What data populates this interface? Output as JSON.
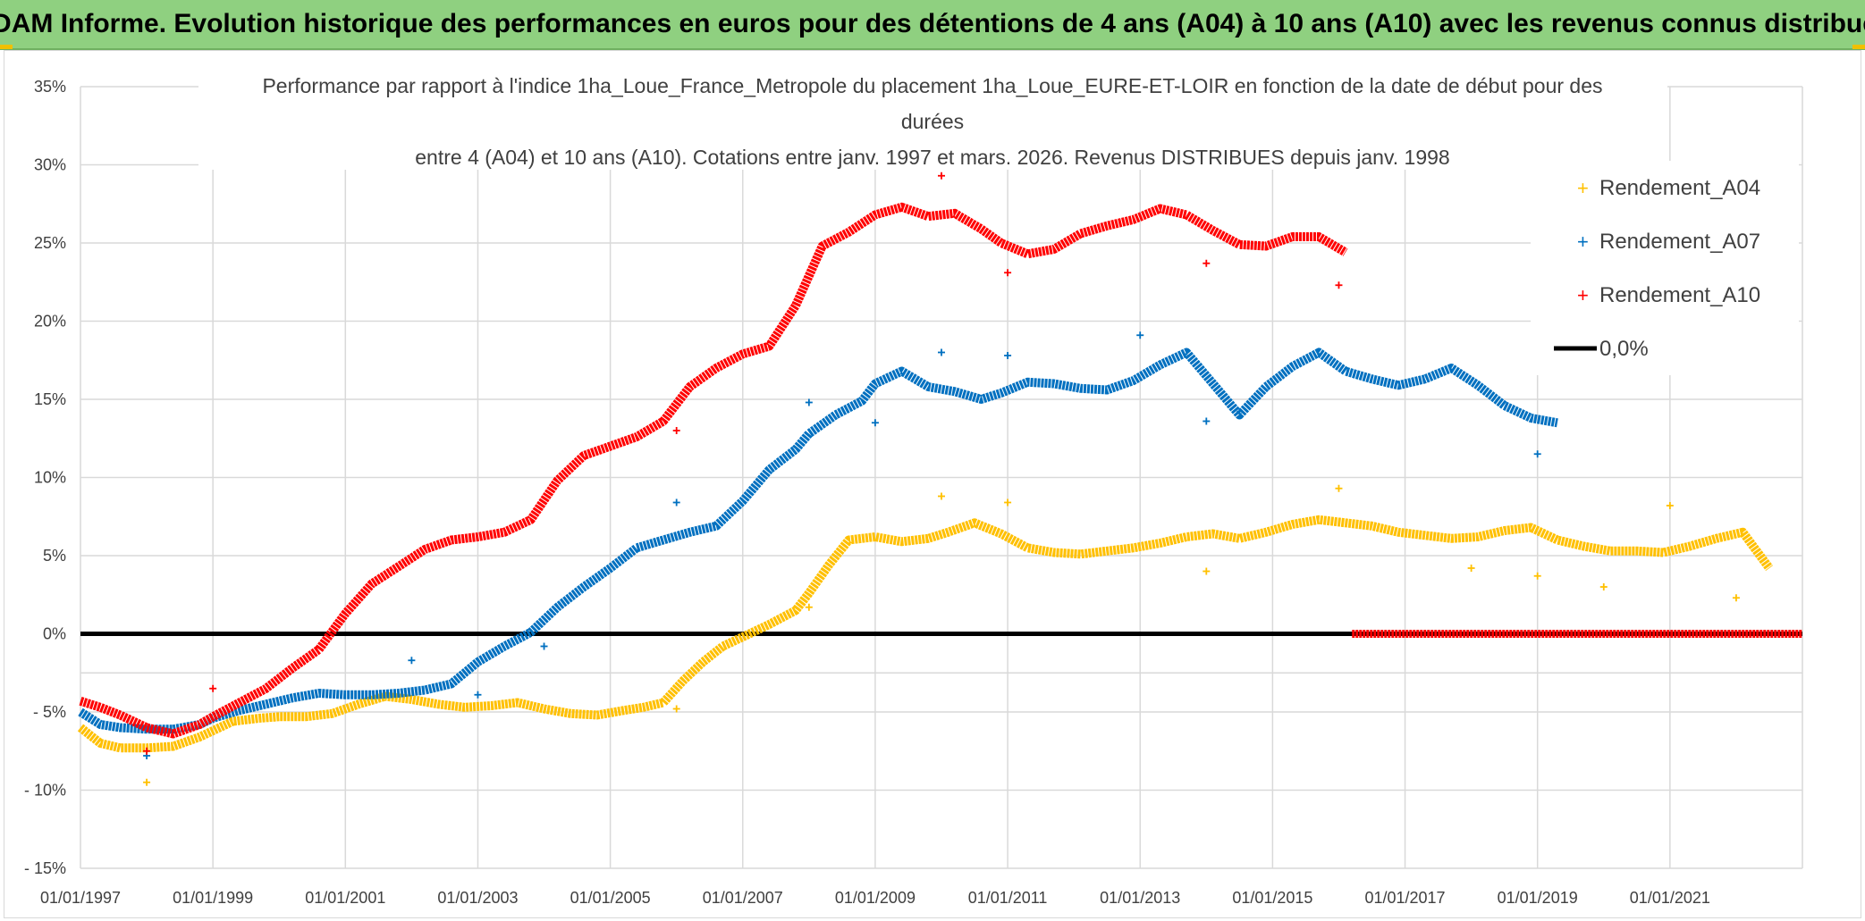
{
  "header": {
    "banner": "ADAM Informe. Evolution historique des performances en euros pour des détentions de 4 ans (A04) à 10 ans (A10) avec les revenus connus distribués"
  },
  "colors": {
    "banner_bg": "#8fd080",
    "A04": "#ffc000",
    "A07": "#0070c0",
    "A10": "#ff0000",
    "zero": "#000000",
    "grid": "#d9d9d9"
  },
  "chart_data": {
    "type": "scatter",
    "title_lines": [
      "Performance par rapport à l'indice 1ha_Loue_France_Metropole  du placement 1ha_Loue_EURE-ET-LOIR en fonction de la date de début pour des",
      "durées",
      "entre 4 (A04) et 10 ans (A10). Cotations entre janv. 1997 et mars. 2026. Revenus DISTRIBUES depuis janv. 1998"
    ],
    "xlabel": "",
    "ylabel": "",
    "xlim": [
      1997.0,
      2023.0
    ],
    "ylim": [
      -15,
      35
    ],
    "x_ticks": [
      1997,
      1999,
      2001,
      2003,
      2005,
      2007,
      2009,
      2011,
      2013,
      2015,
      2017,
      2019,
      2021
    ],
    "x_tick_labels": [
      "01/01/1997",
      "01/01/1999",
      "01/01/2001",
      "01/01/2003",
      "01/01/2005",
      "01/01/2007",
      "01/01/2009",
      "01/01/2011",
      "01/01/2013",
      "01/01/2015",
      "01/01/2017",
      "01/01/2019",
      "01/01/2021"
    ],
    "y_ticks": [
      -15,
      -10,
      -5,
      0,
      5,
      10,
      15,
      20,
      25,
      30,
      35
    ],
    "y_tick_labels": [
      "- 15%",
      "- 10%",
      "- 5%",
      "0%",
      "5%",
      "10%",
      "15%",
      "20%",
      "25%",
      "30%",
      "35%"
    ],
    "grid": true,
    "legend_position": "top-right",
    "series": [
      {
        "name": "Rendement_A04",
        "color": "#ffc000",
        "x": [
          1997.0,
          1997.3,
          1997.6,
          1998.0,
          1998.4,
          1998.8,
          1999.0,
          1999.3,
          1999.7,
          2000.0,
          2000.4,
          2000.8,
          2001.2,
          2001.6,
          2002.0,
          2002.4,
          2002.8,
          2003.2,
          2003.6,
          2004.0,
          2004.4,
          2004.8,
          2005.2,
          2005.5,
          2005.8,
          2006.1,
          2006.4,
          2006.7,
          2007.0,
          2007.4,
          2007.8,
          2008.0,
          2008.3,
          2008.6,
          2009.0,
          2009.4,
          2009.8,
          2010.1,
          2010.5,
          2010.9,
          2011.3,
          2011.7,
          2012.1,
          2012.5,
          2012.9,
          2013.3,
          2013.7,
          2014.1,
          2014.5,
          2014.9,
          2015.3,
          2015.7,
          2016.1,
          2016.5,
          2016.9,
          2017.3,
          2017.7,
          2018.1,
          2018.5,
          2018.9,
          2019.3,
          2019.7,
          2020.1,
          2020.5,
          2020.9,
          2021.3,
          2021.7,
          2022.1,
          2022.5
        ],
        "values": [
          -6.0,
          -7.0,
          -7.3,
          -7.3,
          -7.2,
          -6.6,
          -6.2,
          -5.6,
          -5.4,
          -5.3,
          -5.3,
          -5.1,
          -4.5,
          -4.0,
          -4.2,
          -4.5,
          -4.7,
          -4.6,
          -4.4,
          -4.8,
          -5.1,
          -5.2,
          -4.9,
          -4.7,
          -4.4,
          -3.0,
          -1.8,
          -0.8,
          -0.2,
          0.6,
          1.5,
          2.6,
          4.4,
          6.0,
          6.2,
          5.9,
          6.1,
          6.5,
          7.1,
          6.4,
          5.5,
          5.2,
          5.1,
          5.3,
          5.5,
          5.8,
          6.2,
          6.4,
          6.1,
          6.5,
          7.0,
          7.3,
          7.1,
          6.9,
          6.5,
          6.3,
          6.1,
          6.2,
          6.6,
          6.8,
          6.0,
          5.6,
          5.3,
          5.3,
          5.2,
          5.6,
          6.1,
          6.5,
          4.2
        ]
      },
      {
        "name": "Rendement_A07",
        "color": "#0070c0",
        "x": [
          1997.0,
          1997.3,
          1997.6,
          1998.0,
          1998.4,
          1998.8,
          1999.0,
          1999.4,
          1999.8,
          2000.2,
          2000.6,
          2001.0,
          2001.4,
          2001.8,
          2002.2,
          2002.6,
          2003.0,
          2003.4,
          2003.8,
          2004.2,
          2004.6,
          2005.0,
          2005.4,
          2005.8,
          2006.2,
          2006.6,
          2007.0,
          2007.4,
          2007.8,
          2008.0,
          2008.4,
          2008.8,
          2009.0,
          2009.4,
          2009.8,
          2010.2,
          2010.6,
          2010.9,
          2011.3,
          2011.7,
          2012.1,
          2012.5,
          2012.9,
          2013.3,
          2013.7,
          2014.1,
          2014.5,
          2014.9,
          2015.3,
          2015.7,
          2016.1,
          2016.5,
          2016.9,
          2017.3,
          2017.7,
          2018.1,
          2018.5,
          2018.9,
          2019.3
        ],
        "values": [
          -5.0,
          -5.8,
          -6.0,
          -6.1,
          -6.1,
          -5.8,
          -5.4,
          -4.9,
          -4.5,
          -4.1,
          -3.8,
          -3.9,
          -3.9,
          -3.8,
          -3.6,
          -3.2,
          -1.8,
          -0.8,
          0.1,
          1.7,
          3.0,
          4.2,
          5.5,
          6.0,
          6.5,
          6.9,
          8.5,
          10.5,
          11.8,
          12.8,
          14.0,
          14.9,
          16.0,
          16.8,
          15.8,
          15.5,
          15.0,
          15.4,
          16.1,
          16.0,
          15.7,
          15.6,
          16.2,
          17.2,
          18.0,
          16.0,
          14.0,
          15.8,
          17.1,
          18.0,
          16.8,
          16.3,
          15.9,
          16.3,
          17.0,
          15.9,
          14.6,
          13.8,
          13.5
        ]
      },
      {
        "name": "Rendement_A10",
        "color": "#ff0000",
        "x": [
          1997.0,
          1997.3,
          1997.6,
          1998.0,
          1998.4,
          1998.8,
          1999.0,
          1999.4,
          1999.8,
          2000.2,
          2000.6,
          2001.0,
          2001.4,
          2001.8,
          2002.2,
          2002.6,
          2003.0,
          2003.4,
          2003.8,
          2004.2,
          2004.6,
          2005.0,
          2005.4,
          2005.8,
          2006.2,
          2006.6,
          2007.0,
          2007.4,
          2007.8,
          2008.2,
          2008.6,
          2009.0,
          2009.4,
          2009.8,
          2010.2,
          2010.6,
          2010.9,
          2011.3,
          2011.7,
          2012.1,
          2012.5,
          2012.9,
          2013.3,
          2013.7,
          2014.1,
          2014.5,
          2014.9,
          2015.3,
          2015.7,
          2016.1
        ],
        "values": [
          -4.3,
          -4.7,
          -5.2,
          -6.0,
          -6.4,
          -5.8,
          -5.3,
          -4.4,
          -3.5,
          -2.2,
          -1.0,
          1.3,
          3.2,
          4.3,
          5.4,
          6.0,
          6.2,
          6.5,
          7.3,
          9.8,
          11.4,
          12.0,
          12.6,
          13.6,
          15.8,
          17.0,
          17.9,
          18.4,
          21.0,
          24.8,
          25.7,
          26.8,
          27.3,
          26.7,
          26.9,
          25.9,
          25.0,
          24.3,
          24.6,
          25.6,
          26.1,
          26.5,
          27.2,
          26.8,
          25.8,
          24.9,
          24.8,
          25.4,
          25.4,
          24.4
        ]
      },
      {
        "name": "0,0%",
        "color": "#000000",
        "x": [
          1997.0,
          2023.0
        ],
        "values": [
          0,
          0
        ]
      }
    ],
    "zero_tail": {
      "name": "Rendement_A10",
      "color": "#ff0000",
      "x": [
        2016.2,
        2023.0
      ],
      "values": [
        0,
        0
      ]
    },
    "outliers": [
      {
        "series": "Rendement_A04",
        "x": 1998.0,
        "y": -9.5
      },
      {
        "series": "Rendement_A04",
        "x": 2006.0,
        "y": -4.8
      },
      {
        "series": "Rendement_A04",
        "x": 2008.0,
        "y": 1.7
      },
      {
        "series": "Rendement_A04",
        "x": 2010.0,
        "y": 8.8
      },
      {
        "series": "Rendement_A04",
        "x": 2011.0,
        "y": 8.4
      },
      {
        "series": "Rendement_A04",
        "x": 2014.0,
        "y": 4.0
      },
      {
        "series": "Rendement_A04",
        "x": 2016.0,
        "y": 9.3
      },
      {
        "series": "Rendement_A04",
        "x": 2018.0,
        "y": 4.2
      },
      {
        "series": "Rendement_A04",
        "x": 2019.0,
        "y": 3.7
      },
      {
        "series": "Rendement_A04",
        "x": 2020.0,
        "y": 3.0
      },
      {
        "series": "Rendement_A04",
        "x": 2021.0,
        "y": 8.2
      },
      {
        "series": "Rendement_A04",
        "x": 2022.0,
        "y": 2.3
      },
      {
        "series": "Rendement_A07",
        "x": 1998.0,
        "y": -7.8
      },
      {
        "series": "Rendement_A07",
        "x": 2002.0,
        "y": -1.7
      },
      {
        "series": "Rendement_A07",
        "x": 2003.0,
        "y": -3.9
      },
      {
        "series": "Rendement_A07",
        "x": 2004.0,
        "y": -0.8
      },
      {
        "series": "Rendement_A07",
        "x": 2006.0,
        "y": 8.4
      },
      {
        "series": "Rendement_A07",
        "x": 2008.0,
        "y": 14.8
      },
      {
        "series": "Rendement_A07",
        "x": 2009.0,
        "y": 13.5
      },
      {
        "series": "Rendement_A07",
        "x": 2010.0,
        "y": 18.0
      },
      {
        "series": "Rendement_A07",
        "x": 2011.0,
        "y": 17.8
      },
      {
        "series": "Rendement_A07",
        "x": 2013.0,
        "y": 19.1
      },
      {
        "series": "Rendement_A07",
        "x": 2014.0,
        "y": 13.6
      },
      {
        "series": "Rendement_A07",
        "x": 2019.0,
        "y": 11.5
      },
      {
        "series": "Rendement_A10",
        "x": 1998.0,
        "y": -7.5
      },
      {
        "series": "Rendement_A10",
        "x": 1999.0,
        "y": -3.5
      },
      {
        "series": "Rendement_A10",
        "x": 2006.0,
        "y": 13.0
      },
      {
        "series": "Rendement_A10",
        "x": 2010.0,
        "y": 29.3
      },
      {
        "series": "Rendement_A10",
        "x": 2011.0,
        "y": 23.1
      },
      {
        "series": "Rendement_A10",
        "x": 2014.0,
        "y": 23.7
      },
      {
        "series": "Rendement_A10",
        "x": 2016.0,
        "y": 22.3
      }
    ]
  }
}
